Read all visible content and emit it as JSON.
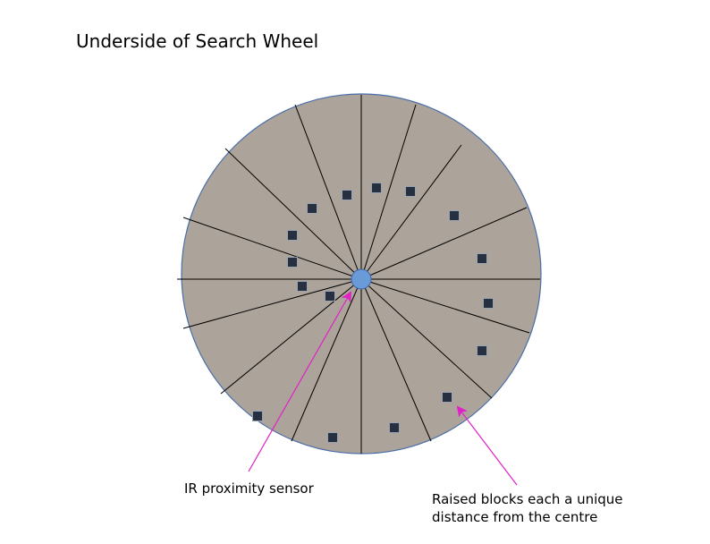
{
  "title": "Underside of Search Wheel",
  "labels": {
    "sensor": "IR proximity sensor",
    "blocks_line1": "Raised blocks each a unique",
    "blocks_line2": "distance from the centre"
  },
  "wheel": {
    "segment_count": 16,
    "block_count": 16
  },
  "colors": {
    "wheel_fill": "#aca49a",
    "wheel_outline": "#4a6ea8",
    "spoke": "#000000",
    "sensor_fill": "#6a9bd8",
    "sensor_outline": "#3d6aa8",
    "block_fill": "#263040",
    "block_outline": "#9aa4b0",
    "arrow": "#e31fc6"
  }
}
